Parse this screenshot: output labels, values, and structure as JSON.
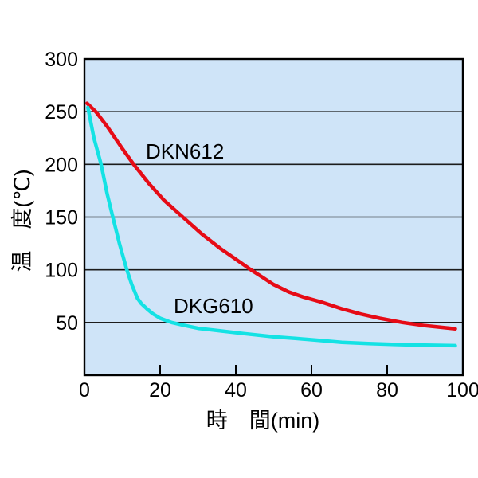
{
  "chart_data": {
    "type": "line",
    "title": "",
    "xlabel": "時　間(min)",
    "ylabel": "温　度(℃)",
    "xlim": [
      0,
      100
    ],
    "ylim": [
      0,
      300
    ],
    "x_ticks": [
      0,
      20,
      40,
      60,
      80,
      100
    ],
    "y_ticks": [
      300,
      250,
      200,
      150,
      100,
      50
    ],
    "grid": "horizontal-only",
    "legend_position": "inline-labels-on-plot",
    "colors": {
      "plot_background": "#cfe4f8",
      "grid_line": "#1c1c1c",
      "axis_border": "#000000",
      "tick_text": "#000000"
    },
    "series": [
      {
        "name": "DKN612",
        "color": "#e60b16",
        "points": [
          [
            0.7,
            258
          ],
          [
            3,
            250
          ],
          [
            6,
            236
          ],
          [
            10,
            215
          ],
          [
            13,
            200
          ],
          [
            17,
            182
          ],
          [
            21,
            166
          ],
          [
            26,
            150
          ],
          [
            31,
            134
          ],
          [
            36,
            120
          ],
          [
            40,
            110
          ],
          [
            44,
            100
          ],
          [
            47,
            93
          ],
          [
            50,
            86
          ],
          [
            54,
            79
          ],
          [
            58,
            74
          ],
          [
            63,
            69
          ],
          [
            68,
            63
          ],
          [
            73,
            58
          ],
          [
            78,
            54
          ],
          [
            84,
            50
          ],
          [
            90,
            47
          ],
          [
            94,
            45.5
          ],
          [
            98,
            44
          ]
        ]
      },
      {
        "name": "DKG610",
        "color": "#14e2e4",
        "points": [
          [
            0.9,
            254
          ],
          [
            2.5,
            225
          ],
          [
            4.4,
            200
          ],
          [
            6,
            172
          ],
          [
            7.5,
            150
          ],
          [
            9.3,
            124
          ],
          [
            11.2,
            100
          ],
          [
            12.5,
            86
          ],
          [
            14,
            73
          ],
          [
            15,
            68
          ],
          [
            16.5,
            63
          ],
          [
            18,
            58.5
          ],
          [
            20,
            54
          ],
          [
            23,
            50
          ],
          [
            26,
            47.5
          ],
          [
            30,
            44.5
          ],
          [
            36,
            42
          ],
          [
            42,
            39.5
          ],
          [
            50,
            36.5
          ],
          [
            56,
            34.8
          ],
          [
            62,
            33
          ],
          [
            68,
            31.2
          ],
          [
            75,
            30
          ],
          [
            82,
            29.2
          ],
          [
            90,
            28.5
          ],
          [
            98,
            28
          ]
        ]
      }
    ]
  }
}
